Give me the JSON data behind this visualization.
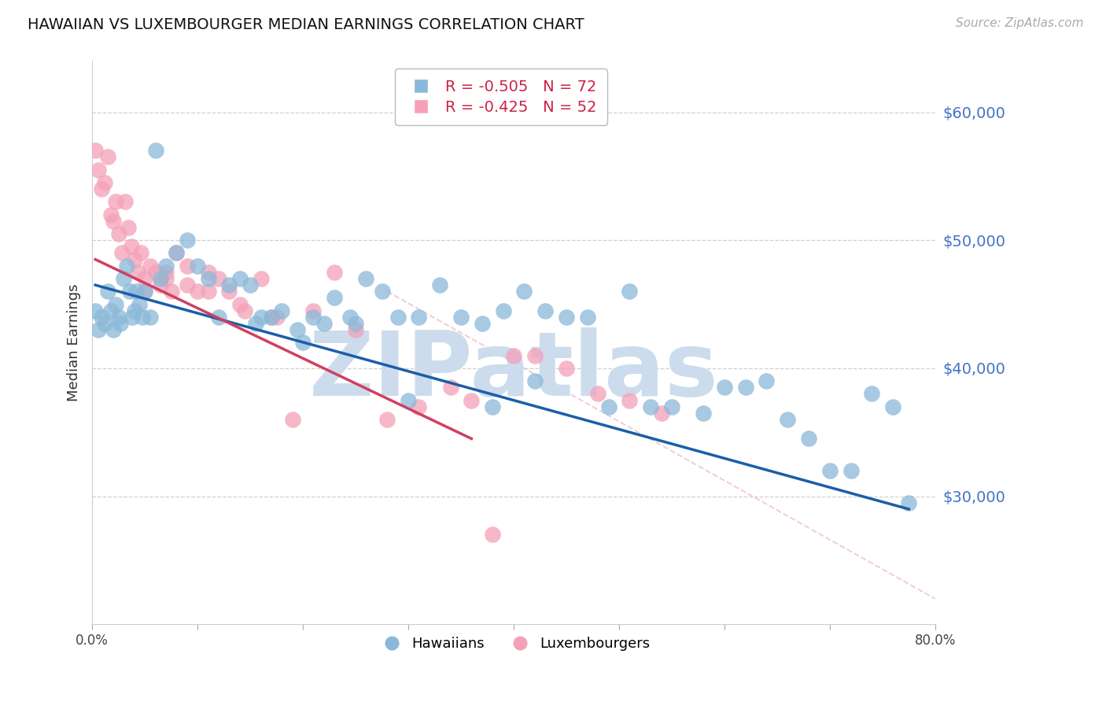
{
  "title": "HAWAIIAN VS LUXEMBOURGER MEDIAN EARNINGS CORRELATION CHART",
  "source": "Source: ZipAtlas.com",
  "ylabel": "Median Earnings",
  "xlim": [
    0.0,
    0.8
  ],
  "ylim": [
    20000,
    64000
  ],
  "yticks": [
    30000,
    40000,
    50000,
    60000
  ],
  "ytick_labels": [
    "$30,000",
    "$40,000",
    "$50,000",
    "$60,000"
  ],
  "hawaiian_color": "#8ab8d8",
  "luxembourger_color": "#f4a0b8",
  "hawaiian_line_color": "#1a5fa8",
  "luxembourger_line_color": "#d04060",
  "grid_color": "#d0d0d0",
  "watermark_text": "ZIPatlas",
  "watermark_color": "#ccdcec",
  "background_color": "#ffffff",
  "r_hawaiian": -0.505,
  "n_hawaiian": 72,
  "r_luxembourger": -0.425,
  "n_luxembourger": 52,
  "legend_label_hawaiian": "Hawaiians",
  "legend_label_luxembourger": "Luxembourgers",
  "hawaiian_x": [
    0.003,
    0.006,
    0.009,
    0.012,
    0.015,
    0.018,
    0.02,
    0.022,
    0.025,
    0.027,
    0.03,
    0.033,
    0.036,
    0.038,
    0.04,
    0.042,
    0.045,
    0.048,
    0.05,
    0.055,
    0.06,
    0.065,
    0.07,
    0.08,
    0.09,
    0.1,
    0.11,
    0.12,
    0.13,
    0.14,
    0.15,
    0.16,
    0.17,
    0.18,
    0.195,
    0.21,
    0.22,
    0.23,
    0.245,
    0.26,
    0.275,
    0.29,
    0.31,
    0.33,
    0.35,
    0.37,
    0.39,
    0.41,
    0.43,
    0.45,
    0.47,
    0.49,
    0.51,
    0.53,
    0.55,
    0.58,
    0.6,
    0.62,
    0.64,
    0.66,
    0.68,
    0.7,
    0.72,
    0.74,
    0.76,
    0.775,
    0.155,
    0.2,
    0.25,
    0.3,
    0.38,
    0.42
  ],
  "hawaiian_y": [
    44500,
    43000,
    44000,
    43500,
    46000,
    44500,
    43000,
    45000,
    44000,
    43500,
    47000,
    48000,
    46000,
    44000,
    44500,
    46000,
    45000,
    44000,
    46000,
    44000,
    57000,
    47000,
    48000,
    49000,
    50000,
    48000,
    47000,
    44000,
    46500,
    47000,
    46500,
    44000,
    44000,
    44500,
    43000,
    44000,
    43500,
    45500,
    44000,
    47000,
    46000,
    44000,
    44000,
    46500,
    44000,
    43500,
    44500,
    46000,
    44500,
    44000,
    44000,
    37000,
    46000,
    37000,
    37000,
    36500,
    38500,
    38500,
    39000,
    36000,
    34500,
    32000,
    32000,
    38000,
    37000,
    29500,
    43500,
    42000,
    43500,
    37500,
    37000,
    39000
  ],
  "luxembourger_x": [
    0.003,
    0.006,
    0.009,
    0.012,
    0.015,
    0.018,
    0.02,
    0.022,
    0.025,
    0.028,
    0.031,
    0.034,
    0.037,
    0.04,
    0.043,
    0.046,
    0.05,
    0.055,
    0.06,
    0.065,
    0.07,
    0.075,
    0.08,
    0.09,
    0.1,
    0.11,
    0.12,
    0.13,
    0.145,
    0.16,
    0.175,
    0.19,
    0.21,
    0.23,
    0.25,
    0.28,
    0.31,
    0.34,
    0.36,
    0.38,
    0.4,
    0.42,
    0.45,
    0.48,
    0.51,
    0.54,
    0.05,
    0.07,
    0.09,
    0.11,
    0.14,
    0.17
  ],
  "luxembourger_y": [
    57000,
    55500,
    54000,
    54500,
    56500,
    52000,
    51500,
    53000,
    50500,
    49000,
    53000,
    51000,
    49500,
    48500,
    47500,
    49000,
    47000,
    48000,
    47500,
    46500,
    47500,
    46000,
    49000,
    46500,
    46000,
    47500,
    47000,
    46000,
    44500,
    47000,
    44000,
    36000,
    44500,
    47500,
    43000,
    36000,
    37000,
    38500,
    37500,
    27000,
    41000,
    41000,
    40000,
    38000,
    37500,
    36500,
    46000,
    47000,
    48000,
    46000,
    45000,
    44000
  ],
  "blue_line_x": [
    0.003,
    0.775
  ],
  "blue_line_y": [
    46500,
    29000
  ],
  "pink_line_x": [
    0.003,
    0.36
  ],
  "pink_line_y": [
    48500,
    34500
  ],
  "dash_line_x": [
    0.28,
    0.8
  ],
  "dash_line_y": [
    46000,
    22000
  ]
}
